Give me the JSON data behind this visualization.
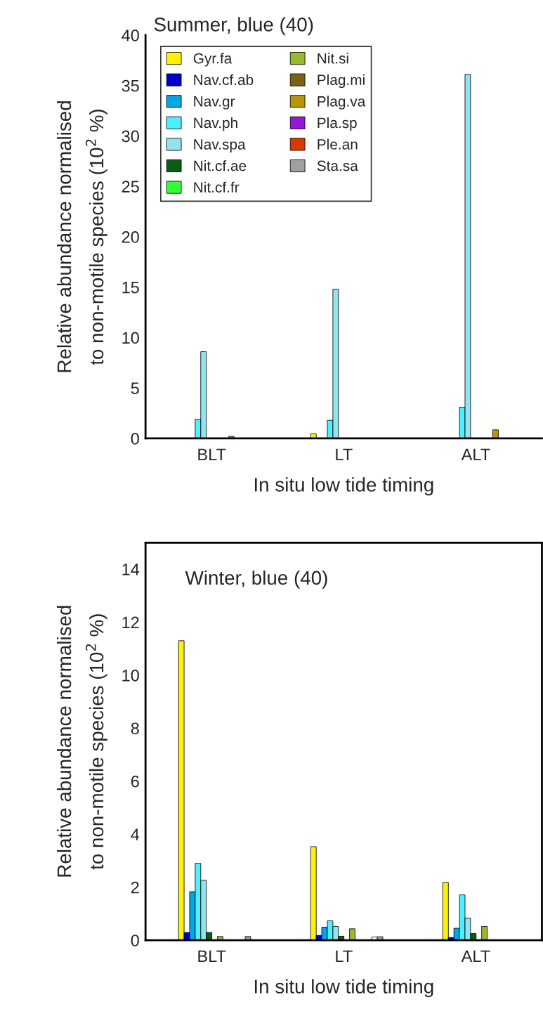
{
  "chart_data": [
    {
      "type": "bar",
      "title": "Summer, blue (40)",
      "xlabel": "In situ low tide timing",
      "ylabel": "Relative abundance normalised\nto non-motile species (10$^{2}$ %)",
      "categories": [
        "BLT",
        "LT",
        "ALT"
      ],
      "ylim": [
        0,
        40
      ],
      "yticks": [
        0,
        5,
        10,
        15,
        20,
        25,
        30,
        35,
        40
      ],
      "grid": false,
      "legend": "top left",
      "series": [
        {
          "name": "Gyr.fa",
          "color": "#fff200",
          "values": [
            null,
            0.45,
            null
          ]
        },
        {
          "name": "Nav.cf.ab",
          "color": "#0000cc",
          "values": [
            null,
            null,
            null
          ]
        },
        {
          "name": "Nav.gr",
          "color": "#00a6e6",
          "values": [
            null,
            null,
            null
          ]
        },
        {
          "name": "Nav.ph",
          "color": "#4cf0ff",
          "values": [
            1.9,
            1.8,
            3.1
          ]
        },
        {
          "name": "Nav.spa",
          "color": "#90e4ef",
          "values": [
            8.6,
            14.8,
            36.1
          ]
        },
        {
          "name": "Nit.cf.ae",
          "color": "#0a5c1a",
          "values": [
            null,
            null,
            null
          ]
        },
        {
          "name": "Nit.cf.fr",
          "color": "#33ff33",
          "values": [
            null,
            null,
            null
          ]
        },
        {
          "name": "Nit.si",
          "color": "#9ab92e",
          "values": [
            null,
            0.03,
            null
          ]
        },
        {
          "name": "Plag.mi",
          "color": "#7a6414",
          "values": [
            null,
            null,
            null
          ]
        },
        {
          "name": "Plag.va",
          "color": "#b8960a",
          "values": [
            0.2,
            0.03,
            0.85
          ]
        },
        {
          "name": "Pla.sp",
          "color": "#9418d8",
          "values": [
            null,
            null,
            null
          ]
        },
        {
          "name": "Ple.an",
          "color": "#d83a00",
          "values": [
            null,
            null,
            null
          ]
        },
        {
          "name": "Sta.sa",
          "color": "#a0a0a0",
          "values": [
            null,
            null,
            null
          ]
        }
      ]
    },
    {
      "type": "bar",
      "xlabel": "In situ low tide timing",
      "ylabel": "Relative abundance normalised\nto non-motile species (10$^{2}$ %)",
      "annotations": [
        "Winter, blue (40)"
      ],
      "categories": [
        "BLT",
        "LT",
        "ALT"
      ],
      "ylim": [
        0,
        15
      ],
      "yticks": [
        0,
        2,
        4,
        6,
        8,
        10,
        12,
        14
      ],
      "grid": false,
      "legend": false,
      "series": [
        {
          "color": "#fff200",
          "values": [
            11.3,
            3.53,
            2.18
          ]
        },
        {
          "color": "#0000cc",
          "values": [
            0.29,
            0.18,
            0.1
          ]
        },
        {
          "color": "#00a6e6",
          "values": [
            1.83,
            0.49,
            0.45
          ]
        },
        {
          "color": "#4cf0ff",
          "values": [
            2.9,
            0.73,
            1.71
          ]
        },
        {
          "color": "#90e4ef",
          "values": [
            2.26,
            0.52,
            0.83
          ]
        },
        {
          "color": "#0a5c1a",
          "values": [
            0.29,
            0.15,
            0.25
          ]
        },
        {
          "color": "#33ff33",
          "values": [
            null,
            null,
            null
          ]
        },
        {
          "color": "#9ab92e",
          "values": [
            0.14,
            0.43,
            0.52
          ]
        },
        {
          "color": "#7a6414",
          "values": [
            null,
            null,
            null
          ]
        },
        {
          "color": "#b8960a",
          "values": [
            null,
            null,
            null
          ]
        },
        {
          "color": "#9418d8",
          "values": [
            null,
            null,
            null
          ]
        },
        {
          "colors": [
            "#d83a00",
            "#ffffff",
            "#d83a00"
          ],
          "values": [
            null,
            0.12,
            null
          ]
        },
        {
          "color": "#a0a0a0",
          "values": [
            0.14,
            0.13,
            null
          ]
        }
      ]
    }
  ]
}
